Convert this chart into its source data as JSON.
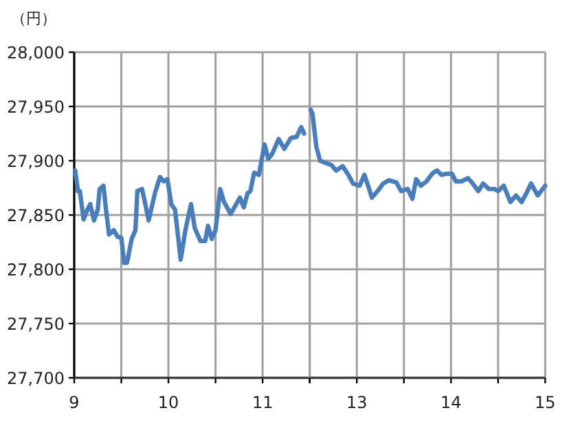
{
  "chart_data": [
    {
      "type": "line",
      "ylabel": "（円）",
      "grid": true,
      "xlim": [
        9,
        11.5
      ],
      "xticks": [
        9,
        {
          "value": 9.5,
          "label": null
        },
        10,
        {
          "value": 10.5,
          "label": null
        },
        11,
        {
          "value": 11.5,
          "label": null
        }
      ],
      "ylim": [
        27700,
        28000
      ],
      "yticks": [
        {
          "value": 27700,
          "label": "27,700"
        },
        {
          "value": 27750,
          "label": "27,750"
        },
        {
          "value": 27800,
          "label": "27,800"
        },
        {
          "value": 27850,
          "label": "27,850"
        },
        {
          "value": 27900,
          "label": "27,900"
        },
        {
          "value": 27950,
          "label": "27,950"
        },
        {
          "value": 28000,
          "label": "28,000"
        }
      ],
      "series": [
        {
          "color": "#4a7ebb",
          "x": [
            9.01,
            9.04,
            9.06,
            9.1,
            9.14,
            9.17,
            9.21,
            9.25,
            9.27,
            9.31,
            9.34,
            9.37,
            9.42,
            9.46,
            9.5,
            9.53,
            9.56,
            9.61,
            9.65,
            9.67,
            9.72,
            9.75,
            9.79,
            9.83,
            9.86,
            9.91,
            9.95,
            9.99,
            10.03,
            10.07,
            10.1,
            10.13,
            10.18,
            10.24,
            10.28,
            10.34,
            10.39,
            10.42,
            10.46,
            10.5,
            10.55,
            10.59,
            10.66,
            10.72,
            10.76,
            10.8,
            10.84,
            10.87,
            10.91,
            10.96,
            11.02,
            11.06,
            11.1,
            11.17,
            11.23,
            11.3,
            11.36,
            11.41,
            11.44
          ],
          "values": [
            27891,
            27872,
            27872,
            27846,
            27855,
            27860,
            27845,
            27855,
            27874,
            27877,
            27853,
            27832,
            27836,
            27830,
            27829,
            27806,
            27806,
            27828,
            27836,
            27872,
            27874,
            27862,
            27845,
            27860,
            27871,
            27885,
            27881,
            27883,
            27860,
            27855,
            27832,
            27809,
            27836,
            27860,
            27838,
            27826,
            27826,
            27840,
            27828,
            27836,
            27874,
            27862,
            27851,
            27860,
            27866,
            27857,
            27870,
            27872,
            27889,
            27887,
            27915,
            27902,
            27906,
            27920,
            27911,
            27921,
            27922,
            27931,
            27925
          ]
        }
      ]
    },
    {
      "type": "line",
      "grid": true,
      "tick_labels": "x",
      "xlim": [
        12.5,
        15
      ],
      "xticks": [
        {
          "value": 12.5,
          "label": null
        },
        13,
        {
          "value": 13.5,
          "label": null
        },
        14,
        {
          "value": 14.5,
          "label": null
        },
        15
      ],
      "ylim": [
        27700,
        28000
      ],
      "yticks": [
        27700,
        27750,
        27800,
        27850,
        27900,
        27950,
        28000
      ],
      "series": [
        {
          "color": "#4a7ebb",
          "x": [
            12.51,
            12.53,
            12.57,
            12.61,
            12.67,
            12.73,
            12.78,
            12.85,
            12.91,
            12.96,
            13.03,
            13.08,
            13.12,
            13.16,
            13.22,
            13.28,
            13.34,
            13.42,
            13.47,
            13.54,
            13.59,
            13.63,
            13.68,
            13.74,
            13.8,
            13.85,
            13.9,
            13.95,
            14.01,
            14.05,
            14.11,
            14.18,
            14.23,
            14.29,
            14.34,
            14.4,
            14.46,
            14.5,
            14.56,
            14.63,
            14.69,
            14.75,
            14.8,
            14.85,
            14.92,
            15.0
          ],
          "values": [
            27947,
            27943,
            27913,
            27900,
            27898,
            27896,
            27891,
            27895,
            27887,
            27879,
            27877,
            27887,
            27877,
            27866,
            27872,
            27879,
            27882,
            27880,
            27872,
            27874,
            27865,
            27883,
            27877,
            27881,
            27888,
            27891,
            27887,
            27888,
            27888,
            27881,
            27881,
            27884,
            27879,
            27872,
            27879,
            27874,
            27874,
            27872,
            27877,
            27862,
            27868,
            27862,
            27870,
            27879,
            27868,
            27877
          ]
        }
      ]
    }
  ]
}
